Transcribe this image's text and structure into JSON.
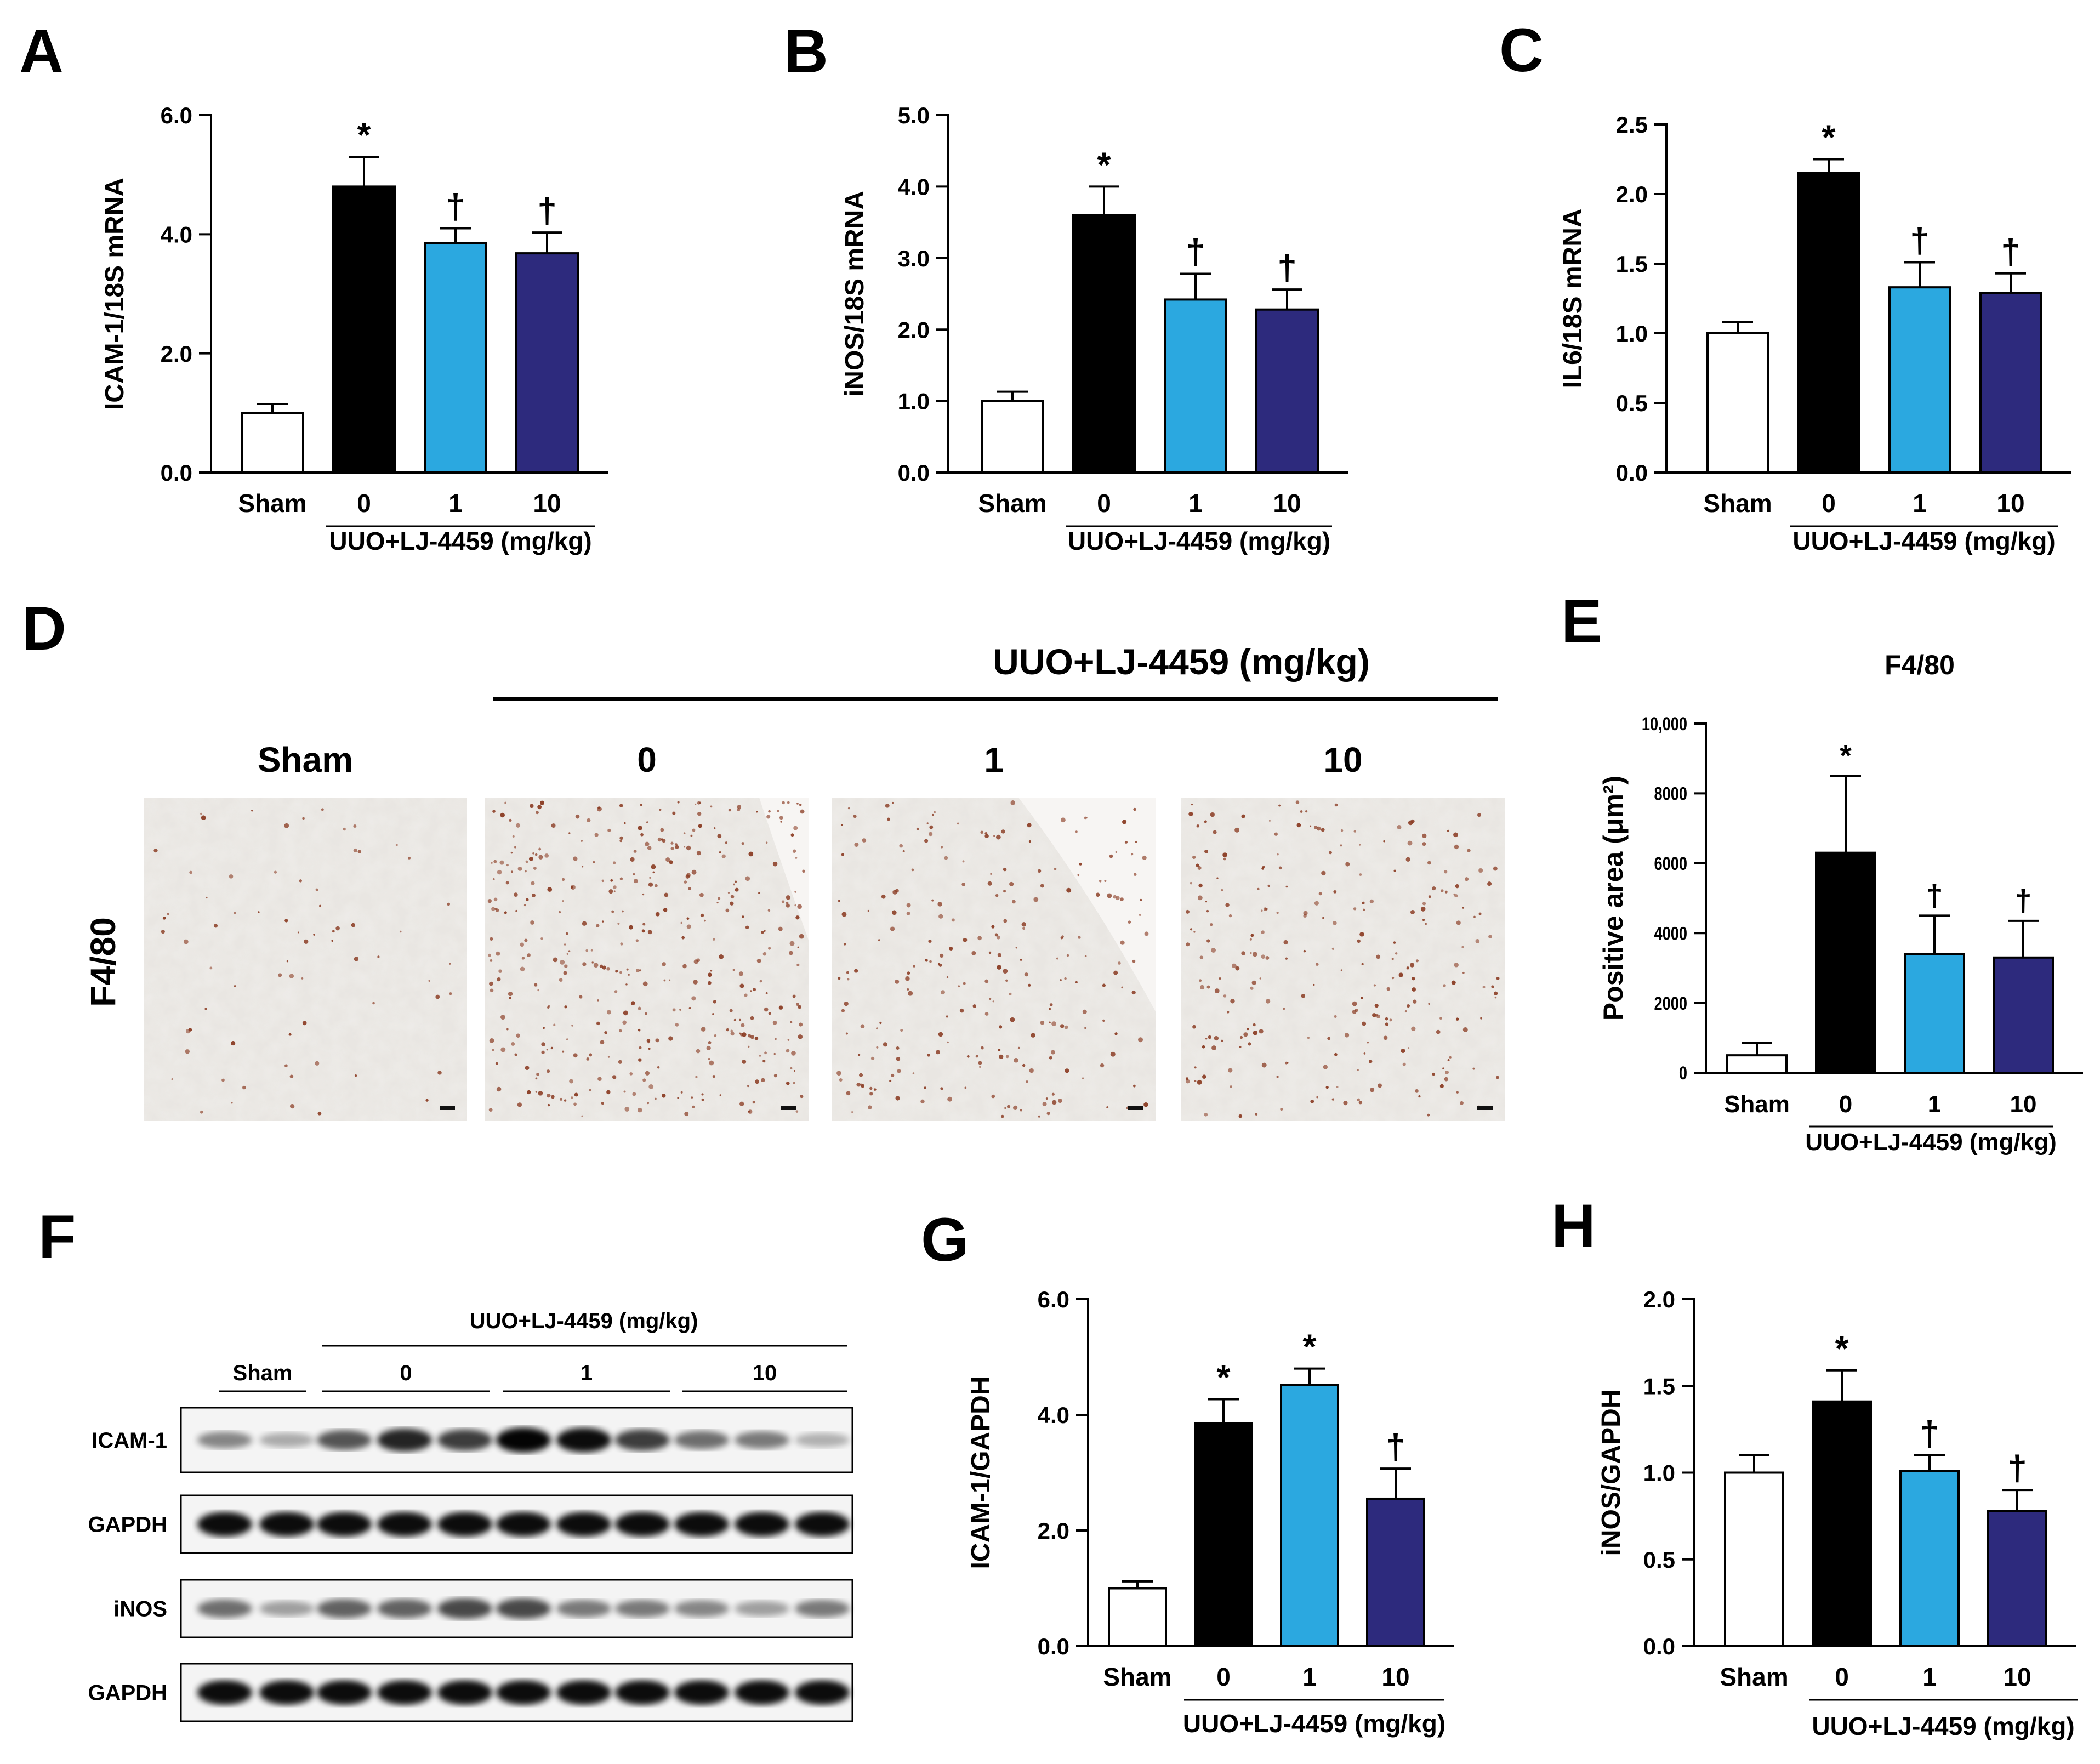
{
  "colors": {
    "sham": "#ffffff",
    "dose0": "#000000",
    "dose1": "#2ba8e0",
    "dose10": "#2d2a7d"
  },
  "panels": {
    "A": {
      "letter": "A"
    },
    "B": {
      "letter": "B"
    },
    "C": {
      "letter": "C"
    },
    "D": {
      "letter": "D",
      "group_label": "UUO+LJ-4459 (mg/kg)",
      "row_label": "F4/80",
      "columns": [
        "Sham",
        "0",
        "1",
        "10"
      ]
    },
    "E": {
      "letter": "E",
      "title": "F4/80"
    },
    "F": {
      "letter": "F",
      "group_label": "UUO+LJ-4459 (mg/kg)",
      "lane_groups": [
        "Sham",
        "0",
        "1",
        "10"
      ],
      "rows": [
        "ICAM-1",
        "GAPDH",
        "iNOS",
        "GAPDH"
      ]
    },
    "G": {
      "letter": "G"
    },
    "H": {
      "letter": "H"
    }
  },
  "chart_data": [
    {
      "id": "A",
      "type": "bar",
      "ylabel": "ICAM-1/18S mRNA",
      "xgroup_label": "UUO+LJ-4459 (mg/kg)",
      "categories": [
        "Sham",
        "0",
        "1",
        "10"
      ],
      "values": [
        1.0,
        4.8,
        3.85,
        3.68
      ],
      "errors": [
        0.15,
        0.5,
        0.25,
        0.35
      ],
      "marks": [
        "",
        "*",
        "†",
        "†"
      ],
      "ylim": [
        0,
        6
      ],
      "yticks": [
        "0.0",
        "2.0",
        "4.0",
        "6.0"
      ]
    },
    {
      "id": "B",
      "type": "bar",
      "ylabel": "iNOS/18S mRNA",
      "xgroup_label": "UUO+LJ-4459 (mg/kg)",
      "categories": [
        "Sham",
        "0",
        "1",
        "10"
      ],
      "values": [
        1.0,
        3.6,
        2.42,
        2.28
      ],
      "errors": [
        0.13,
        0.4,
        0.36,
        0.28
      ],
      "marks": [
        "",
        "*",
        "†",
        "†"
      ],
      "ylim": [
        0,
        5
      ],
      "yticks": [
        "0.0",
        "1.0",
        "2.0",
        "3.0",
        "4.0",
        "5.0"
      ]
    },
    {
      "id": "C",
      "type": "bar",
      "ylabel": "IL6/18S mRNA",
      "xgroup_label": "UUO+LJ-4459 (mg/kg)",
      "categories": [
        "Sham",
        "0",
        "1",
        "10"
      ],
      "values": [
        1.0,
        2.15,
        1.33,
        1.29
      ],
      "errors": [
        0.08,
        0.1,
        0.18,
        0.14
      ],
      "marks": [
        "",
        "*",
        "†",
        "†"
      ],
      "ylim": [
        0,
        2.5
      ],
      "yticks": [
        "0.0",
        "0.5",
        "1.0",
        "1.5",
        "2.0",
        "2.5"
      ]
    },
    {
      "id": "E",
      "type": "bar",
      "title": "F4/80",
      "ylabel": "Positive area (μm²)",
      "xgroup_label": "UUO+LJ-4459 (mg/kg)",
      "categories": [
        "Sham",
        "0",
        "1",
        "10"
      ],
      "values": [
        500,
        6300,
        3400,
        3300
      ],
      "errors": [
        350,
        2200,
        1100,
        1050
      ],
      "marks": [
        "",
        "*",
        "†",
        "†"
      ],
      "ylim": [
        0,
        10000
      ],
      "yticks": [
        "0",
        "2000",
        "4000",
        "6000",
        "8000",
        "10,000"
      ]
    },
    {
      "id": "G",
      "type": "bar",
      "ylabel": "ICAM-1/GAPDH",
      "xgroup_label": "UUO+LJ-4459 (mg/kg)",
      "categories": [
        "Sham",
        "0",
        "1",
        "10"
      ],
      "values": [
        1.0,
        3.85,
        4.52,
        2.55
      ],
      "errors": [
        0.12,
        0.42,
        0.28,
        0.52
      ],
      "marks": [
        "",
        "*",
        "*",
        "†"
      ],
      "ylim": [
        0,
        6
      ],
      "yticks": [
        "0.0",
        "2.0",
        "4.0",
        "6.0"
      ]
    },
    {
      "id": "H",
      "type": "bar",
      "ylabel": "iNOS/GAPDH",
      "xgroup_label": "UUO+LJ-4459 (mg/kg)",
      "categories": [
        "Sham",
        "0",
        "1",
        "10"
      ],
      "values": [
        1.0,
        1.41,
        1.01,
        0.78
      ],
      "errors": [
        0.1,
        0.18,
        0.09,
        0.12
      ],
      "marks": [
        "",
        "*",
        "†",
        "†"
      ],
      "ylim": [
        0,
        2
      ],
      "yticks": [
        "0.0",
        "0.5",
        "1.0",
        "1.5",
        "2.0"
      ]
    }
  ]
}
